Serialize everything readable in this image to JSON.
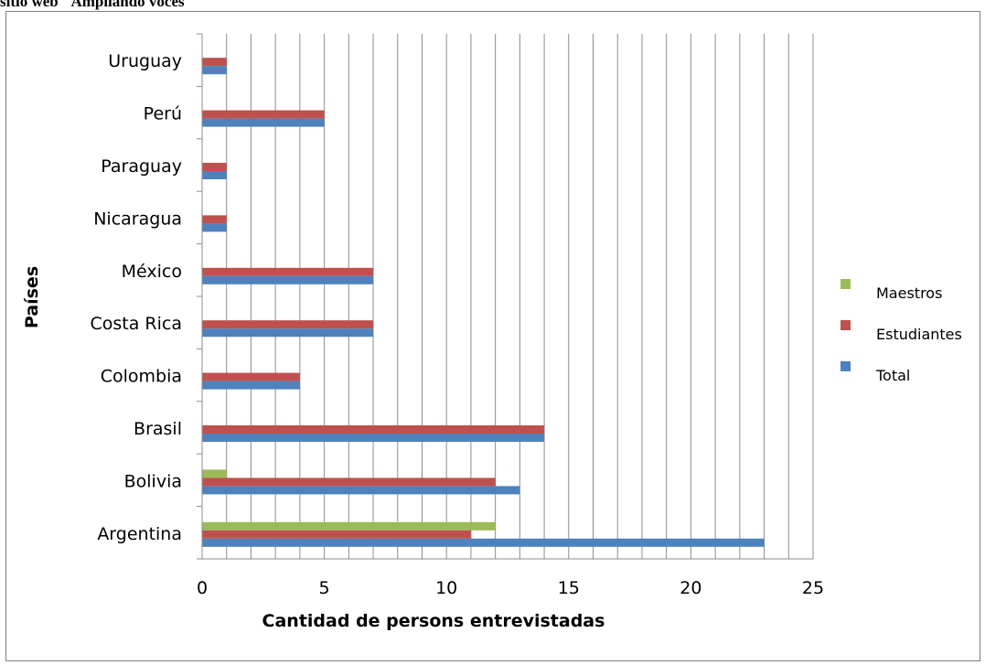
{
  "caption": "sitio web \"Ampliando voces\"",
  "chart_data": {
    "type": "bar",
    "orientation": "horizontal",
    "categories": [
      "Argentina",
      "Bolivia",
      "Brasil",
      "Colombia",
      "Costa Rica",
      "México",
      "Nicaragua",
      "Paraguay",
      "Perú",
      "Uruguay"
    ],
    "series": [
      {
        "name": "Maestros",
        "color": "#9bbb59",
        "values": [
          12,
          1,
          0,
          0,
          0,
          0,
          0,
          0,
          0,
          0
        ]
      },
      {
        "name": "Estudiantes",
        "color": "#c0504d",
        "values": [
          11,
          12,
          14,
          4,
          7,
          7,
          1,
          1,
          5,
          1
        ]
      },
      {
        "name": "Total",
        "color": "#4f81bd",
        "values": [
          23,
          13,
          14,
          4,
          7,
          7,
          1,
          1,
          5,
          1
        ]
      }
    ],
    "xlabel": "Cantidad de persons entrevistadas",
    "ylabel": "Países",
    "xlim": [
      0,
      25
    ],
    "xticks": [
      "0",
      "5",
      "10",
      "15",
      "20",
      "25"
    ],
    "grid": "vertical",
    "legend": "right"
  }
}
